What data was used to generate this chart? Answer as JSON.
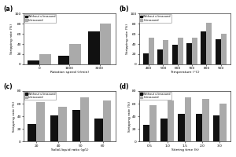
{
  "panel_a": {
    "label": "(a)",
    "xlabel": "Rotation speed (r/min)",
    "ylabel": "Stripping rate (%)",
    "categories": [
      "0",
      "1000",
      "3000"
    ],
    "without_us": [
      8,
      17,
      65
    ],
    "with_us": [
      20,
      40,
      80
    ],
    "ylim": [
      0,
      100
    ],
    "yticks": [
      0,
      20,
      40,
      60,
      80,
      100
    ]
  },
  "panel_b": {
    "label": "(b)",
    "xlabel": "Temperature (°C)",
    "ylabel": "Stripping rate (%)",
    "categories": [
      "400",
      "500",
      "600",
      "700",
      "800",
      "900"
    ],
    "without_us": [
      22,
      30,
      38,
      42,
      65,
      50
    ],
    "with_us": [
      52,
      48,
      53,
      53,
      82,
      60
    ],
    "ylim": [
      0,
      100
    ],
    "yticks": [
      0,
      20,
      40,
      60,
      80,
      100
    ]
  },
  "panel_c": {
    "label": "(c)",
    "xlabel": "Solid-liquid ratio (g/L)",
    "ylabel": "Stripping rate (%)",
    "categories": [
      "20",
      "40",
      "50",
      "60"
    ],
    "without_us": [
      28,
      42,
      50,
      36
    ],
    "with_us": [
      62,
      55,
      70,
      65
    ],
    "ylim": [
      0,
      80
    ],
    "yticks": [
      0,
      20,
      40,
      60,
      80
    ]
  },
  "panel_d": {
    "label": "(d)",
    "xlabel": "Stirring time (h)",
    "ylabel": "Stripping rate (%)",
    "categories": [
      "0.5",
      "1.0",
      "1.5",
      "2.0",
      "3.0"
    ],
    "without_us": [
      27,
      37,
      44,
      44,
      42
    ],
    "with_us": [
      58,
      65,
      70,
      68,
      60
    ],
    "ylim": [
      0,
      80
    ],
    "yticks": [
      0,
      20,
      40,
      60,
      80
    ]
  },
  "color_without": "#111111",
  "color_with": "#aaaaaa",
  "legend_without": "Without ultrasound",
  "legend_with": "Ultrasound",
  "bg_color": "#ffffff"
}
